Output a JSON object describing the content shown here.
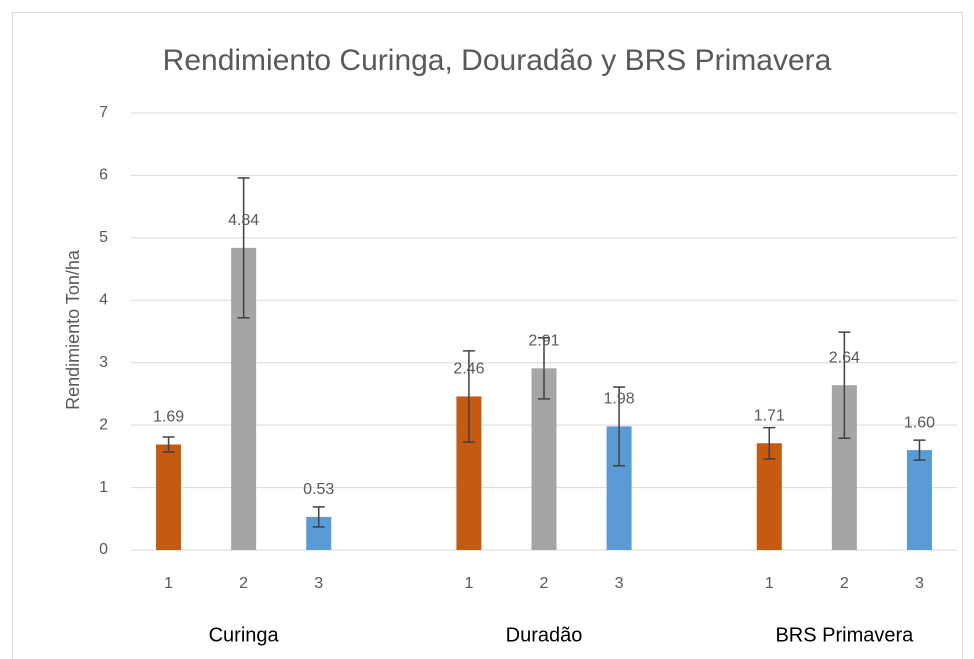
{
  "chart_data": {
    "type": "bar",
    "title": "Rendimiento Curinga, Douradão y BRS Primavera",
    "y_label": "Rendimiento Ton/ha",
    "categories": [
      "1",
      "2",
      "3",
      null,
      "1",
      "2",
      "3",
      null,
      "1",
      "2",
      "3"
    ],
    "values": [
      1.69,
      4.84,
      0.53,
      null,
      2.46,
      2.91,
      1.98,
      null,
      1.71,
      2.64,
      1.6
    ],
    "value_labels": [
      "1.69",
      "4.84",
      "0.53",
      null,
      "2.46",
      "2.91",
      "1.98",
      null,
      "1.71",
      "2.64",
      "1.60"
    ],
    "errors": [
      0.12,
      1.12,
      0.16,
      null,
      0.73,
      0.49,
      0.63,
      null,
      0.25,
      0.85,
      0.16
    ],
    "colors": [
      "#c55a11",
      "#a5a5a5",
      "#5b9bd5"
    ],
    "group_labels": [
      "Curinga",
      "Duradão",
      "BRS Primavera"
    ],
    "ylim": [
      0,
      7
    ],
    "yticks": [
      0,
      1,
      2,
      3,
      4,
      5,
      6,
      7
    ],
    "grid": true
  }
}
